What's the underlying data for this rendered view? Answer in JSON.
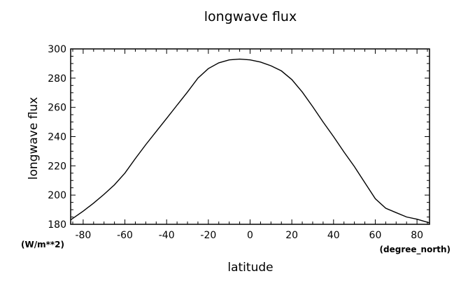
{
  "chart_data": {
    "type": "line",
    "title": "longwave flux",
    "xlabel": "latitude",
    "ylabel": "longwave flux",
    "x_unit": "(degree_north)",
    "y_unit": "(W/m**2)",
    "xlim": [
      -86,
      86
    ],
    "ylim": [
      180,
      300
    ],
    "xticks": [
      -80,
      -60,
      -40,
      -20,
      0,
      20,
      40,
      60,
      80
    ],
    "yticks": [
      180,
      200,
      220,
      240,
      260,
      280,
      300
    ],
    "grid": false,
    "series": [
      {
        "x": [
          -86,
          -80,
          -75,
          -70,
          -65,
          -60,
          -55,
          -50,
          -45,
          -40,
          -35,
          -30,
          -25,
          -20,
          -15,
          -10,
          -5,
          0,
          5,
          10,
          15,
          20,
          25,
          30,
          35,
          40,
          45,
          50,
          55,
          60,
          65,
          70,
          75,
          80,
          86
        ],
        "y": [
          183,
          189,
          194.5,
          200.5,
          207,
          215,
          225,
          234.5,
          243.5,
          252.5,
          261.5,
          270.5,
          280,
          286.5,
          290.5,
          292.5,
          293,
          292.5,
          291,
          288.5,
          285,
          279,
          270.5,
          260.5,
          250,
          240,
          229.5,
          219.5,
          208.5,
          197.5,
          191,
          188,
          185,
          183.5,
          181
        ]
      }
    ]
  }
}
